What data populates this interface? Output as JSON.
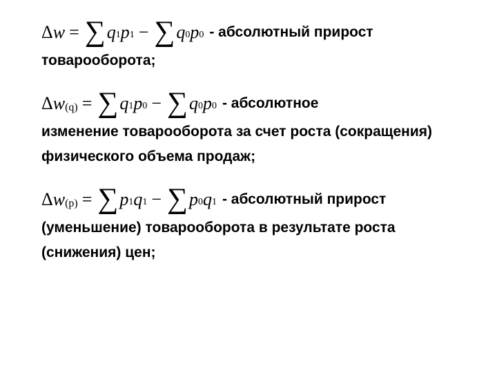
{
  "formulas": [
    {
      "lhs_var": "w",
      "lhs_sub": "",
      "term1_var1": "q",
      "term1_sub1": "1",
      "term1_var2": "p",
      "term1_sub2": "1",
      "term2_var1": "q",
      "term2_sub1": "0",
      "term2_var2": "p",
      "term2_sub2": "0",
      "inline_desc": "- абсолютный прирост",
      "desc_cont": "товарооборота;"
    },
    {
      "lhs_var": "w",
      "lhs_sub": "(q)",
      "term1_var1": "q",
      "term1_sub1": "1",
      "term1_var2": "p",
      "term1_sub2": "0",
      "term2_var1": "q",
      "term2_sub1": "0",
      "term2_var2": "p",
      "term2_sub2": "0",
      "inline_desc": "- абсолютное",
      "desc_cont": "изменение товарооборота за счет роста (сокращения) физического объема продаж;"
    },
    {
      "lhs_var": "w",
      "lhs_sub": "(p)",
      "term1_var1": "p",
      "term1_sub1": "1",
      "term1_var2": "q",
      "term1_sub2": "1",
      "term2_var1": "p",
      "term2_sub1": "0",
      "term2_var2": "q",
      "term2_sub2": "1",
      "inline_desc": "- абсолютный прирост",
      "desc_cont": "(уменьшение) товарооборота в результате роста (снижения) цен;"
    }
  ]
}
